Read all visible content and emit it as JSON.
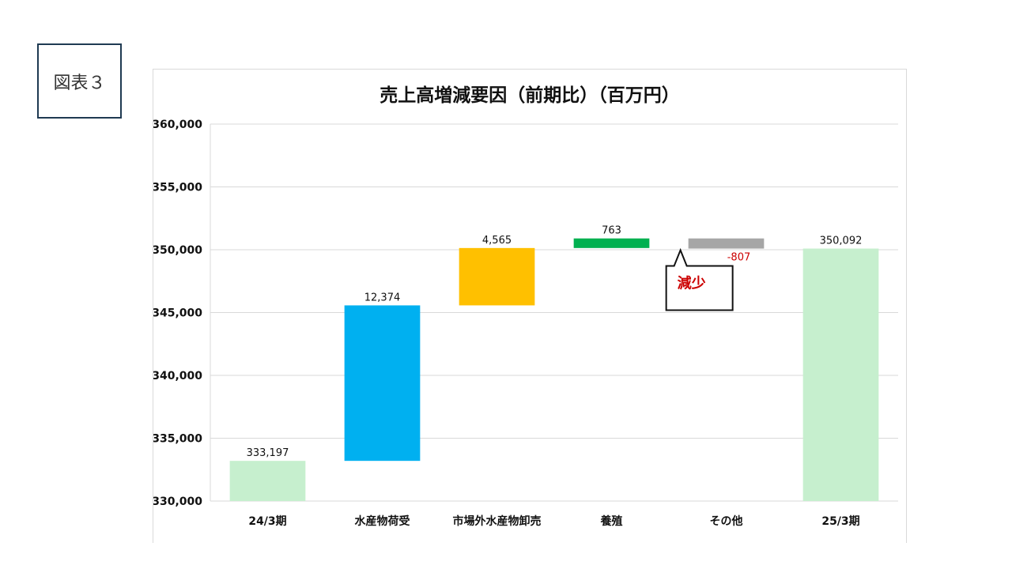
{
  "figure_label": "図表３",
  "chart_data": {
    "type": "bar",
    "subtype": "waterfall",
    "title": "売上高増減要因（前期比）（百万円）",
    "categories": [
      "24/3期",
      "水産物荷受",
      "市場外水産物卸売",
      "養殖",
      "その他",
      "25/3期"
    ],
    "values": [
      333197,
      12374,
      4565,
      763,
      -807,
      350092
    ],
    "value_labels": [
      "333,197",
      "12,374",
      "4,565",
      "763",
      "-807",
      "350,092"
    ],
    "bar_roles": [
      "total",
      "increase",
      "increase",
      "increase",
      "decrease",
      "total"
    ],
    "colors": [
      "#c6efce",
      "#00b0f0",
      "#ffc000",
      "#00b050",
      "#a6a6a6",
      "#c6efce"
    ],
    "negative_label_color": "#cc0000",
    "ylim": [
      330000,
      360000
    ],
    "yticks": [
      330000,
      335000,
      340000,
      345000,
      350000,
      355000,
      360000
    ],
    "ytick_labels": [
      "330,000",
      "335,000",
      "340,000",
      "345,000",
      "350,000",
      "355,000",
      "360,000"
    ],
    "grid": true,
    "legend": "none",
    "annotation": {
      "text": "減少",
      "target": "その他"
    }
  }
}
